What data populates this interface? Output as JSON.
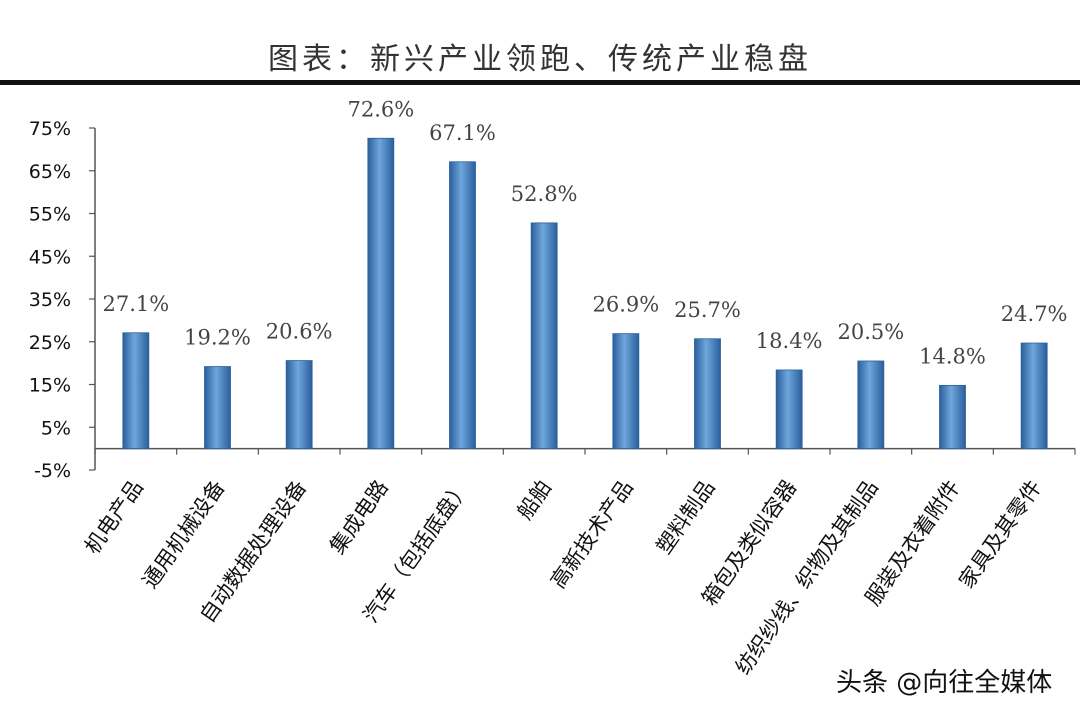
{
  "header": {
    "title": "图表：新兴产业领跑、传统产业稳盘"
  },
  "watermark": "头条 @向往全媒体",
  "chart_data": {
    "type": "bar",
    "title": "图表：新兴产业领跑、传统产业稳盘",
    "categories": [
      "机电产品",
      "通用机械设备",
      "自动数据处理设备",
      "集成电路",
      "汽车（包括底盘）",
      "船舶",
      "高新技术产品",
      "塑料制品",
      "箱包及类似容器",
      "纺织纱线、织物及其制品",
      "服装及衣着附件",
      "家具及其零件"
    ],
    "values": [
      27.1,
      19.2,
      20.6,
      72.6,
      67.1,
      52.8,
      26.9,
      25.7,
      18.4,
      20.5,
      14.8,
      24.7
    ],
    "data_labels": [
      "27.1%",
      "19.2%",
      "20.6%",
      "72.6%",
      "67.1%",
      "52.8%",
      "26.9%",
      "25.7%",
      "18.4%",
      "20.5%",
      "14.8%",
      "24.7%"
    ],
    "yticks": [
      75,
      65,
      55,
      45,
      35,
      25,
      15,
      5,
      -5
    ],
    "ytick_labels": [
      "75%",
      "65%",
      "55%",
      "45%",
      "35%",
      "25%",
      "15%",
      "5%",
      "-5%"
    ],
    "ylim": [
      -5,
      75
    ],
    "xlabel": "",
    "ylabel": "",
    "grid": false,
    "bar_color": "#3f7ec0"
  }
}
